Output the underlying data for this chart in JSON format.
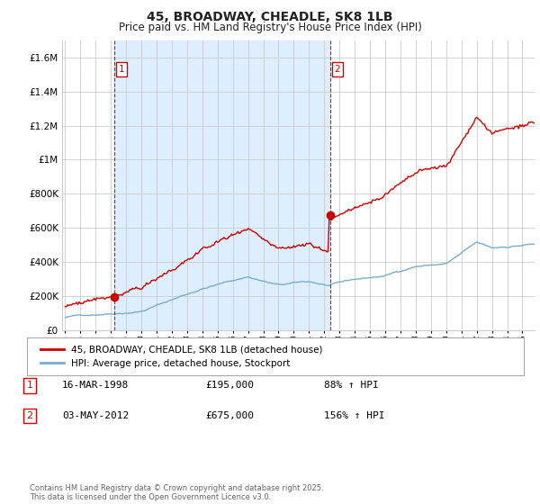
{
  "title": "45, BROADWAY, CHEADLE, SK8 1LB",
  "subtitle": "Price paid vs. HM Land Registry's House Price Index (HPI)",
  "legend_line1": "45, BROADWAY, CHEADLE, SK8 1LB (detached house)",
  "legend_line2": "HPI: Average price, detached house, Stockport",
  "sale1_label": "1",
  "sale1_date": "16-MAR-1998",
  "sale1_price": "£195,000",
  "sale1_hpi": "88% ↑ HPI",
  "sale1_year": 1998.21,
  "sale1_value": 195000,
  "sale2_label": "2",
  "sale2_date": "03-MAY-2012",
  "sale2_price": "£675,000",
  "sale2_hpi": "156% ↑ HPI",
  "sale2_year": 2012.37,
  "sale2_value": 675000,
  "footer": "Contains HM Land Registry data © Crown copyright and database right 2025.\nThis data is licensed under the Open Government Licence v3.0.",
  "red_color": "#cc0000",
  "blue_color": "#7aadcc",
  "shade_color": "#ddeeff",
  "grid_color": "#cccccc",
  "background_color": "#ffffff",
  "ylim": [
    0,
    1700000
  ],
  "xlim": [
    1994.8,
    2025.8
  ],
  "yticks": [
    0,
    200000,
    400000,
    600000,
    800000,
    1000000,
    1200000,
    1400000,
    1600000
  ],
  "xticks": [
    1995,
    1996,
    1997,
    1998,
    1999,
    2000,
    2001,
    2002,
    2003,
    2004,
    2005,
    2006,
    2007,
    2008,
    2009,
    2010,
    2011,
    2012,
    2013,
    2014,
    2015,
    2016,
    2017,
    2018,
    2019,
    2020,
    2021,
    2022,
    2023,
    2024,
    2025
  ]
}
